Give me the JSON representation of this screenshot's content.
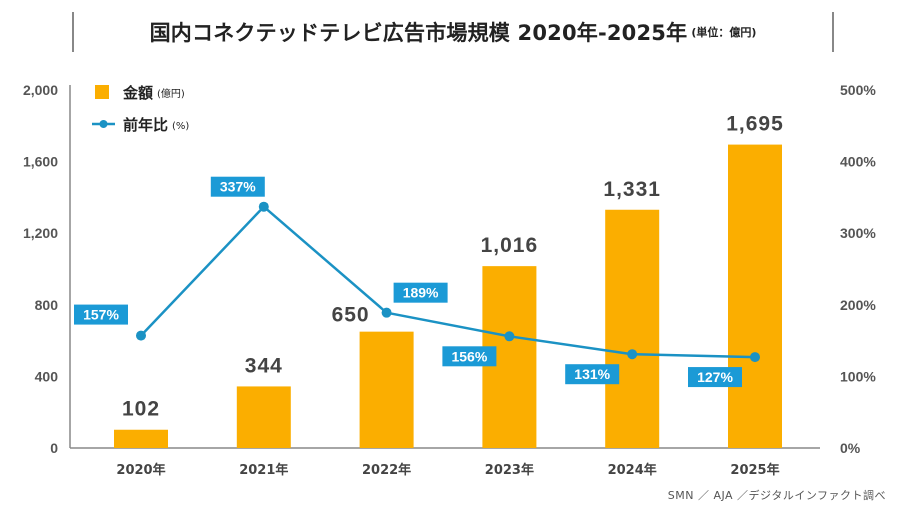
{
  "title": {
    "main": "国内コネクテッドテレビ広告市場規模 2020年-2025年",
    "unit": "(単位：億円)"
  },
  "source": "SMN ／ AJA ／デジタルインファクト調べ",
  "colors": {
    "bar": "#FBAE00",
    "line": "#1B92C4",
    "label_box": "#1B9AD6",
    "axis": "#888888"
  },
  "chart_data": {
    "type": "bar",
    "title": "国内コネクテッドテレビ広告市場規模 2020年-2025年",
    "subtitle": "(単位：億円)",
    "categories": [
      "2020年",
      "2021年",
      "2022年",
      "2023年",
      "2024年",
      "2025年"
    ],
    "series": [
      {
        "name": "金額",
        "name_suffix": "(億円)",
        "type": "bar",
        "axis": "left",
        "values": [
          102,
          344,
          650,
          1016,
          1331,
          1695
        ],
        "labels": [
          "102",
          "344",
          "650",
          "1,016",
          "1,331",
          "1,695"
        ]
      },
      {
        "name": "前年比",
        "name_suffix": "(%)",
        "type": "line",
        "axis": "right",
        "values": [
          157,
          337,
          189,
          156,
          131,
          127
        ],
        "labels": [
          "157%",
          "337%",
          "189%",
          "156%",
          "131%",
          "127%"
        ]
      }
    ],
    "y_left": {
      "range": [
        0,
        2000
      ],
      "ticks": [
        0,
        400,
        800,
        1200,
        1600,
        2000
      ],
      "tick_labels": [
        "0",
        "400",
        "800",
        "1,200",
        "1,600",
        "2,000"
      ]
    },
    "y_right": {
      "range": [
        0,
        500
      ],
      "ticks": [
        0,
        100,
        200,
        300,
        400,
        500
      ],
      "tick_labels": [
        "0%",
        "100%",
        "200%",
        "300%",
        "400%",
        "500%"
      ]
    },
    "xlabel": "",
    "ylabel": "",
    "grid": false,
    "legend": "top-left"
  }
}
